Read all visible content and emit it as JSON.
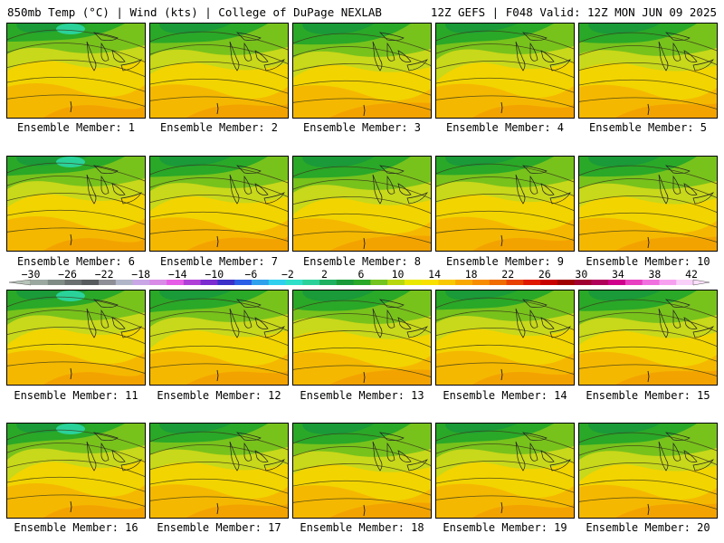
{
  "header": {
    "left": "850mb Temp (°C) | Wind (kts) | College of DuPage NEXLAB",
    "right": "12Z GEFS | F048 Valid: 12Z MON JUN 09 2025"
  },
  "members": [
    {
      "label": "Ensemble Member: 1"
    },
    {
      "label": "Ensemble Member: 2"
    },
    {
      "label": "Ensemble Member: 3"
    },
    {
      "label": "Ensemble Member: 4"
    },
    {
      "label": "Ensemble Member: 5"
    },
    {
      "label": "Ensemble Member: 6"
    },
    {
      "label": "Ensemble Member: 7"
    },
    {
      "label": "Ensemble Member: 8"
    },
    {
      "label": "Ensemble Member: 9"
    },
    {
      "label": "Ensemble Member: 10"
    },
    {
      "label": "Ensemble Member: 11"
    },
    {
      "label": "Ensemble Member: 12"
    },
    {
      "label": "Ensemble Member: 13"
    },
    {
      "label": "Ensemble Member: 14"
    },
    {
      "label": "Ensemble Member: 15"
    },
    {
      "label": "Ensemble Member: 16"
    },
    {
      "label": "Ensemble Member: 17"
    },
    {
      "label": "Ensemble Member: 18"
    },
    {
      "label": "Ensemble Member: 19"
    },
    {
      "label": "Ensemble Member: 20"
    }
  ],
  "colorbar": {
    "ticks": [
      "−30",
      "−26",
      "−22",
      "−18",
      "−14",
      "−10",
      "−6",
      "−2",
      "2",
      "6",
      "10",
      "14",
      "18",
      "22",
      "26",
      "30",
      "34",
      "38",
      "42"
    ],
    "colors": [
      "#9aa8a0",
      "#7f8c85",
      "#6a6f70",
      "#575b5e",
      "#8e8e96",
      "#b0b5c8",
      "#c9a6e6",
      "#d98ae6",
      "#e65ce6",
      "#b03fd8",
      "#7b2bd0",
      "#3a2fc8",
      "#2a5ee6",
      "#2fa0ec",
      "#2fd0ee",
      "#2ee0c8",
      "#2ad29a",
      "#1fb060",
      "#1a9a38",
      "#2aa828",
      "#73c41e",
      "#b8d80e",
      "#e8e800",
      "#f8e000",
      "#f8c800",
      "#f8a800",
      "#f88c00",
      "#f06c00",
      "#e84000",
      "#e01800",
      "#c80000",
      "#a00000",
      "#a00030",
      "#b0005a",
      "#d0008c",
      "#e840c0",
      "#f070e0",
      "#f8a0f0",
      "#f8d0f8"
    ]
  }
}
